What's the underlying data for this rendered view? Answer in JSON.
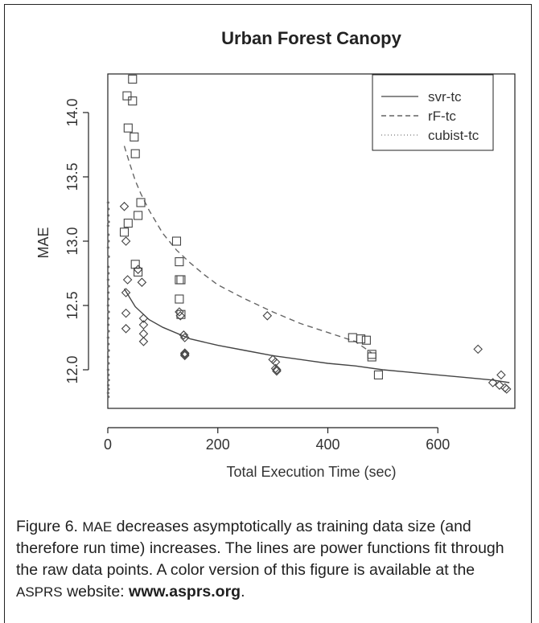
{
  "chart_data": {
    "type": "scatter",
    "title": "Urban Forest Canopy",
    "xlabel": "Total Execution Time (sec)",
    "ylabel": "MAE",
    "xlim": [
      0,
      740
    ],
    "ylim": [
      11.7,
      14.3
    ],
    "xticks": [
      "0",
      "200",
      "400",
      "600"
    ],
    "xtick_values": [
      0,
      200,
      400,
      600
    ],
    "yticks": [
      "12.0",
      "12.5",
      "13.0",
      "13.5",
      "14.0"
    ],
    "ytick_values": [
      12.0,
      12.5,
      13.0,
      13.5,
      14.0
    ],
    "legend_position": "top-right",
    "series": [
      {
        "name": "svr-tc",
        "marker": "diamond",
        "line_style": "solid",
        "points": [
          [
            30,
            13.27
          ],
          [
            33,
            13.0
          ],
          [
            36,
            12.7
          ],
          [
            33,
            12.6
          ],
          [
            33,
            12.44
          ],
          [
            33,
            12.32
          ],
          [
            55,
            12.78
          ],
          [
            62,
            12.68
          ],
          [
            65,
            12.4
          ],
          [
            65,
            12.35
          ],
          [
            65,
            12.28
          ],
          [
            65,
            12.22
          ],
          [
            130,
            12.45
          ],
          [
            132,
            12.42
          ],
          [
            138,
            12.27
          ],
          [
            140,
            12.25
          ],
          [
            140,
            12.13
          ],
          [
            140,
            12.12
          ],
          [
            140,
            12.11
          ],
          [
            290,
            12.42
          ],
          [
            300,
            12.08
          ],
          [
            305,
            12.06
          ],
          [
            305,
            12.01
          ],
          [
            307,
            12.0
          ],
          [
            307,
            11.99
          ],
          [
            673,
            12.16
          ],
          [
            700,
            11.9
          ],
          [
            715,
            11.96
          ],
          [
            712,
            11.88
          ],
          [
            722,
            11.86
          ],
          [
            725,
            11.85
          ]
        ],
        "fit_curve": [
          [
            30,
            12.63
          ],
          [
            50,
            12.49
          ],
          [
            75,
            12.39
          ],
          [
            100,
            12.33
          ],
          [
            150,
            12.24
          ],
          [
            200,
            12.19
          ],
          [
            250,
            12.15
          ],
          [
            300,
            12.11
          ],
          [
            350,
            12.08
          ],
          [
            400,
            12.05
          ],
          [
            450,
            12.03
          ],
          [
            500,
            12.0
          ],
          [
            550,
            11.98
          ],
          [
            600,
            11.96
          ],
          [
            650,
            11.94
          ],
          [
            700,
            11.92
          ],
          [
            730,
            11.9
          ]
        ]
      },
      {
        "name": "rF-tc",
        "marker": "square",
        "line_style": "dashed",
        "points": [
          [
            45,
            14.26
          ],
          [
            35,
            14.13
          ],
          [
            45,
            14.09
          ],
          [
            37,
            13.88
          ],
          [
            48,
            13.81
          ],
          [
            50,
            13.68
          ],
          [
            60,
            13.3
          ],
          [
            55,
            13.2
          ],
          [
            30,
            13.07
          ],
          [
            37,
            13.14
          ],
          [
            50,
            12.82
          ],
          [
            55,
            12.76
          ],
          [
            125,
            13.0
          ],
          [
            130,
            12.84
          ],
          [
            130,
            12.7
          ],
          [
            133,
            12.7
          ],
          [
            130,
            12.55
          ],
          [
            133,
            12.43
          ],
          [
            445,
            12.25
          ],
          [
            460,
            12.24
          ],
          [
            470,
            12.23
          ],
          [
            480,
            12.12
          ],
          [
            480,
            12.1
          ],
          [
            492,
            11.96
          ]
        ],
        "fit_curve": [
          [
            30,
            13.74
          ],
          [
            40,
            13.6
          ],
          [
            50,
            13.47
          ],
          [
            60,
            13.37
          ],
          [
            75,
            13.24
          ],
          [
            100,
            13.06
          ],
          [
            125,
            12.93
          ],
          [
            150,
            12.83
          ],
          [
            175,
            12.74
          ],
          [
            200,
            12.66
          ],
          [
            250,
            12.55
          ],
          [
            300,
            12.45
          ],
          [
            350,
            12.36
          ],
          [
            400,
            12.29
          ],
          [
            450,
            12.22
          ],
          [
            480,
            12.13
          ]
        ]
      },
      {
        "name": "cubist-tc",
        "marker": "dot",
        "line_style": "dotted",
        "points": [
          [
            0.5,
            13.3
          ],
          [
            1,
            13.25
          ],
          [
            0.8,
            13.2
          ],
          [
            1.5,
            13.15
          ],
          [
            0.5,
            13.12
          ],
          [
            1,
            13.05
          ],
          [
            1.2,
            13.0
          ],
          [
            0.5,
            12.95
          ],
          [
            1.5,
            12.88
          ],
          [
            0.8,
            12.8
          ],
          [
            1,
            12.75
          ],
          [
            0.5,
            12.7
          ],
          [
            1.5,
            12.65
          ],
          [
            0.8,
            12.6
          ],
          [
            1,
            12.55
          ],
          [
            0.5,
            12.5
          ],
          [
            1.5,
            12.45
          ],
          [
            1,
            12.4
          ],
          [
            0.8,
            12.35
          ],
          [
            1.3,
            12.3
          ],
          [
            0.5,
            12.25
          ],
          [
            1,
            12.2
          ],
          [
            1.5,
            12.15
          ],
          [
            0.8,
            12.1
          ],
          [
            1.2,
            12.05
          ],
          [
            0.5,
            12.0
          ],
          [
            1,
            11.96
          ],
          [
            1.5,
            11.92
          ],
          [
            0.8,
            11.88
          ],
          [
            1.2,
            11.85
          ],
          [
            0.5,
            11.82
          ],
          [
            1,
            11.79
          ]
        ]
      }
    ]
  },
  "caption": {
    "label": "Figure 6.",
    "part1": "MAE",
    "part2": "decreases asymptotically as training data size (and therefore run time) increases. The lines are power functions fit through the raw data points. A color version of this figure is available at the",
    "part3": "ASPRS",
    "part4": "website:",
    "url": "www.asprs.org",
    "end": "."
  }
}
